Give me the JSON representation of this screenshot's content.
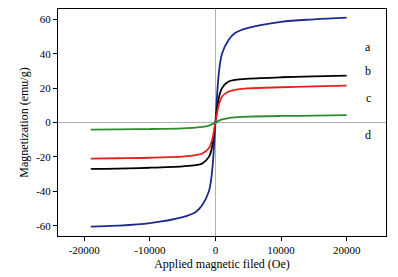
{
  "chart_data": {
    "type": "line",
    "x_label": "Applied magnetic filed (Oe)",
    "y_label": "Magnetization (emu/g)",
    "xlim": [
      -24000,
      26000
    ],
    "ylim": [
      -66,
      66
    ],
    "xticks": [
      -20000,
      -10000,
      0,
      10000,
      20000
    ],
    "yticks": [
      -60,
      -40,
      -20,
      0,
      20,
      40,
      60
    ],
    "grid": false,
    "x": [
      -19000,
      -15000,
      -10000,
      -5000,
      -3000,
      -2000,
      -1000,
      -500,
      0,
      500,
      1000,
      2000,
      3000,
      5000,
      10000,
      15000,
      20000
    ],
    "series": [
      {
        "name": "a",
        "color": "#1c2a8c",
        "values": [
          -60.5,
          -60,
          -58.5,
          -55,
          -52,
          -48,
          -40,
          -28,
          0,
          28,
          40,
          48,
          52,
          55,
          58.5,
          60,
          61
        ]
      },
      {
        "name": "b",
        "color": "#000000",
        "values": [
          -27,
          -26.8,
          -26.3,
          -25.5,
          -24.8,
          -23.8,
          -20,
          -14,
          0,
          14,
          20,
          23.8,
          24.8,
          25.5,
          26.3,
          26.8,
          27.2
        ]
      },
      {
        "name": "c",
        "color": "#e32219",
        "values": [
          -21,
          -20.8,
          -20.5,
          -19.8,
          -19,
          -18,
          -15,
          -10,
          0,
          10,
          15,
          18,
          19,
          19.8,
          20.5,
          21,
          21.5
        ]
      },
      {
        "name": "d",
        "color": "#2e8b2e",
        "values": [
          -4.2,
          -4,
          -3.8,
          -3.4,
          -3,
          -2.6,
          -1.8,
          -1,
          0,
          1,
          1.8,
          2.6,
          3,
          3.4,
          3.8,
          4,
          4.3
        ]
      }
    ],
    "annotations": [
      {
        "text": "a",
        "x": 23300,
        "y": 44
      },
      {
        "text": "b",
        "x": 23300,
        "y": 30
      },
      {
        "text": "c",
        "x": 23300,
        "y": 14
      },
      {
        "text": "d",
        "x": 23300,
        "y": -7
      }
    ]
  }
}
